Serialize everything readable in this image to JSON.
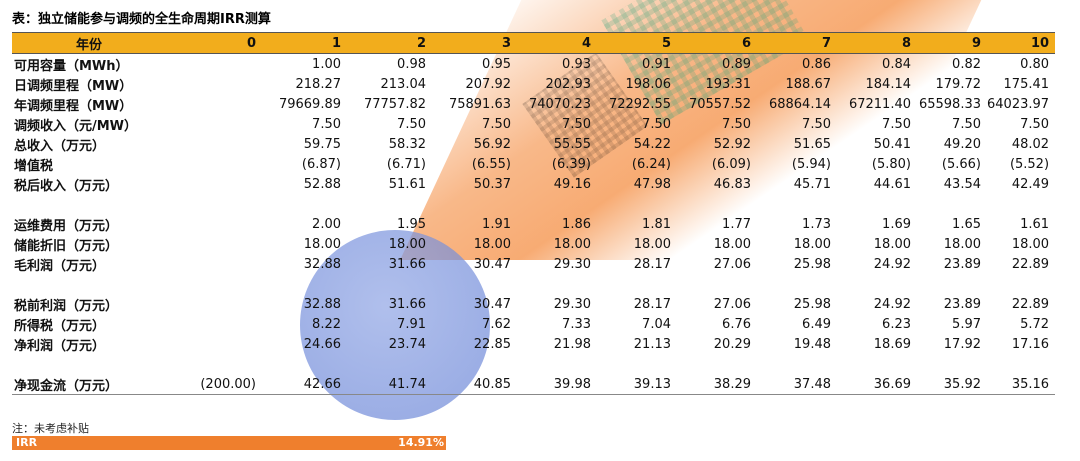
{
  "title": "表：独立储能参与调频的全生命周期IRR测算",
  "header": {
    "label": "年份",
    "years": [
      "0",
      "1",
      "2",
      "3",
      "4",
      "5",
      "6",
      "7",
      "8",
      "9",
      "10"
    ]
  },
  "rows": [
    {
      "label": "可用容量（MWh）",
      "values": [
        "",
        "1.00",
        "0.98",
        "0.95",
        "0.93",
        "0.91",
        "0.89",
        "0.86",
        "0.84",
        "0.82",
        "0.80"
      ]
    },
    {
      "label": "日调频里程（MW）",
      "values": [
        "",
        "218.27",
        "213.04",
        "207.92",
        "202.93",
        "198.06",
        "193.31",
        "188.67",
        "184.14",
        "179.72",
        "175.41"
      ]
    },
    {
      "label": "年调频里程（MW）",
      "values": [
        "",
        "79669.89",
        "77757.82",
        "75891.63",
        "74070.23",
        "72292.55",
        "70557.52",
        "68864.14",
        "67211.40",
        "65598.33",
        "64023.97"
      ]
    },
    {
      "label": "调频收入（元/MW）",
      "values": [
        "",
        "7.50",
        "7.50",
        "7.50",
        "7.50",
        "7.50",
        "7.50",
        "7.50",
        "7.50",
        "7.50",
        "7.50"
      ]
    },
    {
      "label": "总收入（万元）",
      "values": [
        "",
        "59.75",
        "58.32",
        "56.92",
        "55.55",
        "54.22",
        "52.92",
        "51.65",
        "50.41",
        "49.20",
        "48.02"
      ]
    },
    {
      "label": "增值税",
      "values": [
        "",
        "(6.87)",
        "(6.71)",
        "(6.55)",
        "(6.39)",
        "(6.24)",
        "(6.09)",
        "(5.94)",
        "(5.80)",
        "(5.66)",
        "(5.52)"
      ]
    },
    {
      "label": "税后收入（万元）",
      "values": [
        "",
        "52.88",
        "51.61",
        "50.37",
        "49.16",
        "47.98",
        "46.83",
        "45.71",
        "44.61",
        "43.54",
        "42.49"
      ]
    },
    {
      "label": "",
      "values": [
        "",
        "",
        "",
        "",
        "",
        "",
        "",
        "",
        "",
        "",
        ""
      ]
    },
    {
      "label": "运维费用（万元）",
      "values": [
        "",
        "2.00",
        "1.95",
        "1.91",
        "1.86",
        "1.81",
        "1.77",
        "1.73",
        "1.69",
        "1.65",
        "1.61"
      ]
    },
    {
      "label": "储能折旧（万元）",
      "values": [
        "",
        "18.00",
        "18.00",
        "18.00",
        "18.00",
        "18.00",
        "18.00",
        "18.00",
        "18.00",
        "18.00",
        "18.00"
      ]
    },
    {
      "label": "毛利润（万元）",
      "values": [
        "",
        "32.88",
        "31.66",
        "30.47",
        "29.30",
        "28.17",
        "27.06",
        "25.98",
        "24.92",
        "23.89",
        "22.89"
      ]
    },
    {
      "label": "",
      "values": [
        "",
        "",
        "",
        "",
        "",
        "",
        "",
        "",
        "",
        "",
        ""
      ]
    },
    {
      "label": "税前利润（万元）",
      "values": [
        "",
        "32.88",
        "31.66",
        "30.47",
        "29.30",
        "28.17",
        "27.06",
        "25.98",
        "24.92",
        "23.89",
        "22.89"
      ]
    },
    {
      "label": "所得税（万元）",
      "values": [
        "",
        "8.22",
        "7.91",
        "7.62",
        "7.33",
        "7.04",
        "6.76",
        "6.49",
        "6.23",
        "5.97",
        "5.72"
      ]
    },
    {
      "label": "净利润（万元）",
      "values": [
        "",
        "24.66",
        "23.74",
        "22.85",
        "21.98",
        "21.13",
        "20.29",
        "19.48",
        "18.69",
        "17.92",
        "17.16"
      ]
    },
    {
      "label": "",
      "values": [
        "",
        "",
        "",
        "",
        "",
        "",
        "",
        "",
        "",
        "",
        ""
      ]
    },
    {
      "label": "净现金流（万元）",
      "values": [
        "(200.00)",
        "42.66",
        "41.74",
        "40.85",
        "39.98",
        "39.13",
        "38.29",
        "37.48",
        "36.69",
        "35.92",
        "35.16"
      ]
    }
  ],
  "note": "注：未考虑补贴",
  "irr": {
    "label": "IRR",
    "value": "14.91%"
  },
  "colors": {
    "header": "#f2ad1c",
    "irr_bar": "#ef7f2d"
  }
}
